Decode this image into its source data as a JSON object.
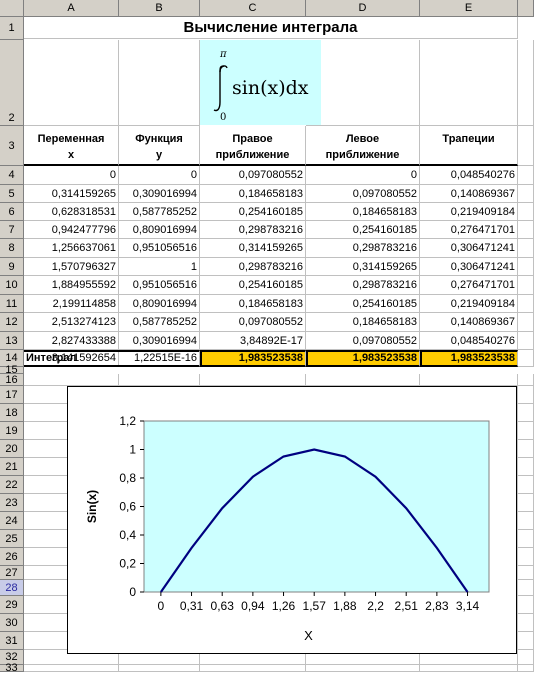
{
  "columns": [
    "A",
    "B",
    "C",
    "D",
    "E"
  ],
  "title": "Вычисление интеграла",
  "formula": {
    "upper": "π",
    "lower": "0",
    "expr": "sin(x)dx"
  },
  "headers": [
    {
      "l1": "Переменная",
      "l2": "x"
    },
    {
      "l1": "Функция",
      "l2": "y"
    },
    {
      "l1": "Правое",
      "l2": "приближение"
    },
    {
      "l1": "Левое",
      "l2": "приближение"
    },
    {
      "l1": "",
      "l2": "Трапеции"
    }
  ],
  "rows": [
    [
      "0",
      "0",
      "0,097080552",
      "0",
      "0,048540276"
    ],
    [
      "0,314159265",
      "0,309016994",
      "0,184658183",
      "0,097080552",
      "0,140869367"
    ],
    [
      "0,628318531",
      "0,587785252",
      "0,254160185",
      "0,184658183",
      "0,219409184"
    ],
    [
      "0,942477796",
      "0,809016994",
      "0,298783216",
      "0,254160185",
      "0,276471701"
    ],
    [
      "1,256637061",
      "0,951056516",
      "0,314159265",
      "0,298783216",
      "0,306471241"
    ],
    [
      "1,570796327",
      "1",
      "0,298783216",
      "0,314159265",
      "0,306471241"
    ],
    [
      "1,884955592",
      "0,951056516",
      "0,254160185",
      "0,298783216",
      "0,276471701"
    ],
    [
      "2,199114858",
      "0,809016994",
      "0,184658183",
      "0,254160185",
      "0,219409184"
    ],
    [
      "2,513274123",
      "0,587785252",
      "0,097080552",
      "0,184658183",
      "0,140869367"
    ],
    [
      "2,827433388",
      "0,309016994",
      "3,84892E-17",
      "0,097080552",
      "0,048540276"
    ],
    [
      "3,141592654",
      "1,22515E-16",
      "",
      "",
      ""
    ]
  ],
  "total": {
    "label": "Интеграл",
    "c": "1,983523538",
    "d": "1,983523538",
    "e": "1,983523538"
  },
  "row_numbers": [
    "1",
    "2",
    "3",
    "4",
    "5",
    "6",
    "7",
    "8",
    "9",
    "10",
    "11",
    "12",
    "13",
    "14",
    "15",
    "16",
    "17",
    "18",
    "19",
    "20",
    "21",
    "22",
    "23",
    "24",
    "25",
    "26",
    "27",
    "28",
    "29",
    "30",
    "31",
    "32",
    "33"
  ],
  "selected_row": "28",
  "colors": {
    "header_bg": "#d4d0c8",
    "formula_bg": "#ccffff",
    "highlight": "#ffcc00",
    "plot_bg": "#ccffff",
    "line": "#000080"
  },
  "chart_data": {
    "type": "line",
    "categories": [
      "0",
      "0,31",
      "0,63",
      "0,94",
      "1,26",
      "1,57",
      "1,88",
      "2,2",
      "2,51",
      "2,83",
      "3,14"
    ],
    "x": [
      0,
      0.31,
      0.63,
      0.94,
      1.26,
      1.57,
      1.88,
      2.2,
      2.51,
      2.83,
      3.14
    ],
    "values": [
      0,
      0.309016994,
      0.587785252,
      0.809016994,
      0.951056516,
      1,
      0.951056516,
      0.809016994,
      0.587785252,
      0.309016994,
      0
    ],
    "ylabel": "Sin(x)",
    "xlabel": "X",
    "yticks": [
      "0",
      "0,2",
      "0,4",
      "0,6",
      "0,8",
      "1",
      "1,2"
    ],
    "ylim": [
      0,
      1.2
    ],
    "grid": false,
    "legend": "none"
  }
}
